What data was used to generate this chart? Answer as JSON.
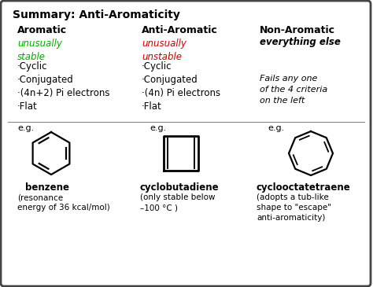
{
  "title": "Summary: Anti-Aromaticity",
  "col1_header": "Aromatic",
  "col2_header": "Anti-Aromatic",
  "col3_header": "Non-Aromatic",
  "col1_subtitle": "unusually\nstable",
  "col2_subtitle": "unusually\nunstable",
  "col3_subtitle": "everything else",
  "col1_subtitle_color": "#00aa00",
  "col2_subtitle_color": "#cc0000",
  "col3_subtitle_color": "#000000",
  "col1_criteria": [
    "·Cyclic",
    "·Conjugated",
    "·(4n+2) Pi electrons",
    "·Flat"
  ],
  "col2_criteria": [
    "·Cyclic",
    "·Conjugated",
    "·(4n) Pi electrons",
    "·Flat"
  ],
  "col3_criteria": "Fails any one\nof the 4 criteria\non the left",
  "col1_compound": "benzene",
  "col2_compound": "cyclobutadiene",
  "col3_compound": "cyclooctatetraene",
  "col1_note": "(resonance\nenergy of 36 kcal/mol)",
  "col2_note": "(only stable below\n–100 °C )",
  "col3_note": "(adopts a tub-like\nshape to \"escape\"\nanti-aromaticity)",
  "bg_color": "#ffffff",
  "border_color": "#444444",
  "text_color": "#000000"
}
